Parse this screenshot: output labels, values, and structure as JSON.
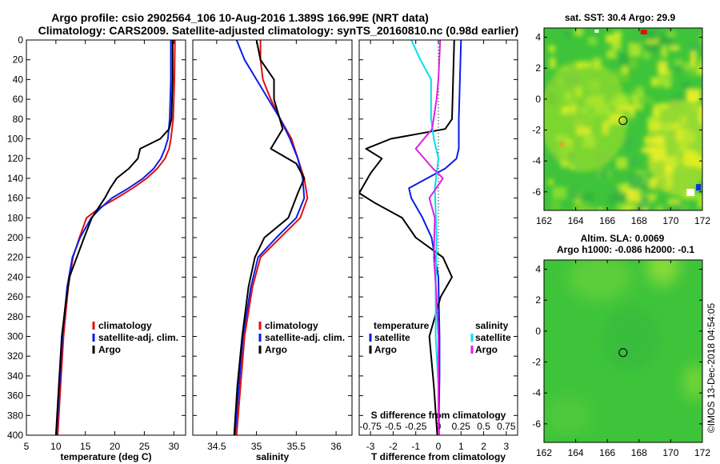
{
  "header": {
    "line1": "Argo profile: csio 2902564_106 10-Aug-2016 1.389S 166.99E (NRT data)",
    "line2": "Climatology: CARS2009. Satellite-adjusted climatology: synTS_20160810.nc (0.98d earlier)"
  },
  "watermark": "©IMOS 13-Dec-2018 04:54:05",
  "colors": {
    "red": "#e01010",
    "blue": "#0a1ee6",
    "black": "#000000",
    "cyan": "#00e0f0",
    "magenta": "#e020e0"
  },
  "chart_data": [
    {
      "type": "line",
      "name": "temperature-profile",
      "xlabel": "temperature (deg C)",
      "ylabel": "depth",
      "xlim": [
        5,
        32
      ],
      "ylim": [
        0,
        400
      ],
      "xticks": [
        5,
        10,
        15,
        20,
        25,
        30
      ],
      "yticks": [
        0,
        20,
        40,
        60,
        80,
        100,
        120,
        140,
        160,
        180,
        200,
        220,
        240,
        260,
        280,
        300,
        320,
        340,
        360,
        380,
        400
      ],
      "legend": [
        {
          "label": "climatology",
          "color": "#e01010"
        },
        {
          "label": "satellite-adj. clim.",
          "color": "#0a1ee6"
        },
        {
          "label": "Argo",
          "color": "#000000"
        }
      ],
      "series": [
        {
          "name": "climatology",
          "color": "#e01010",
          "x": [
            30.2,
            30.1,
            29.9,
            29.5,
            29.2,
            28.5,
            27.2,
            25.4,
            23.0,
            20.3,
            17.4,
            15.2,
            14.0,
            12.9,
            12.1,
            11.3,
            10.8,
            10.3
          ],
          "depth": [
            0,
            40,
            80,
            100,
            110,
            120,
            130,
            140,
            150,
            160,
            170,
            180,
            200,
            220,
            250,
            300,
            350,
            400
          ]
        },
        {
          "name": "satellite-adj. clim.",
          "color": "#0a1ee6",
          "x": [
            29.5,
            29.5,
            29.3,
            29.0,
            28.5,
            27.8,
            26.6,
            24.8,
            22.3,
            19.5,
            17.6,
            16.0,
            14.1,
            12.8,
            11.9,
            11.1,
            10.6,
            10.1
          ],
          "depth": [
            0,
            40,
            80,
            100,
            110,
            120,
            130,
            140,
            150,
            160,
            170,
            180,
            200,
            220,
            250,
            300,
            350,
            400
          ]
        },
        {
          "name": "Argo",
          "color": "#000000",
          "x": [
            29.8,
            29.8,
            29.6,
            29.2,
            27.7,
            24.3,
            23.9,
            22.4,
            20.3,
            19.2,
            18.3,
            16.1,
            14.8,
            12.3,
            11.6,
            11.0,
            10.5,
            10.0
          ],
          "depth": [
            0,
            40,
            80,
            90,
            100,
            110,
            120,
            130,
            140,
            150,
            160,
            180,
            200,
            240,
            270,
            300,
            350,
            400
          ]
        }
      ]
    },
    {
      "type": "line",
      "name": "salinity-profile",
      "xlabel": "salinity",
      "xlim": [
        34.2,
        36.2
      ],
      "ylim": [
        0,
        400
      ],
      "xticks": [
        34.5,
        35,
        35.5,
        36
      ],
      "legend": [
        {
          "label": "climatology",
          "color": "#e01010"
        },
        {
          "label": "satellite-adj. clim.",
          "color": "#0a1ee6"
        },
        {
          "label": "Argo",
          "color": "#000000"
        }
      ],
      "series": [
        {
          "name": "climatology",
          "color": "#e01010",
          "x": [
            35.05,
            35.05,
            35.08,
            35.18,
            35.3,
            35.44,
            35.52,
            35.6,
            35.64,
            35.55,
            35.3,
            35.05,
            34.95,
            34.85,
            34.8,
            34.75
          ],
          "depth": [
            0,
            20,
            40,
            60,
            80,
            100,
            120,
            140,
            160,
            180,
            200,
            220,
            250,
            300,
            350,
            400
          ]
        },
        {
          "name": "satellite-adj. clim.",
          "color": "#0a1ee6",
          "x": [
            34.75,
            34.85,
            35.0,
            35.15,
            35.3,
            35.42,
            35.52,
            35.58,
            35.6,
            35.5,
            35.25,
            35.02,
            34.93,
            34.83,
            34.78,
            34.73
          ],
          "depth": [
            0,
            20,
            40,
            60,
            80,
            100,
            120,
            140,
            160,
            180,
            200,
            220,
            250,
            300,
            350,
            400
          ]
        },
        {
          "name": "Argo",
          "color": "#000000",
          "x": [
            35.0,
            35.05,
            35.22,
            35.22,
            35.33,
            35.18,
            35.5,
            35.6,
            35.52,
            35.4,
            35.1,
            34.98,
            34.9,
            34.82,
            34.76,
            34.72
          ],
          "depth": [
            0,
            20,
            40,
            60,
            90,
            110,
            125,
            140,
            155,
            180,
            200,
            220,
            250,
            300,
            350,
            400
          ]
        }
      ]
    },
    {
      "type": "line",
      "name": "difference-profile",
      "xlabel": "T difference from climatology",
      "xlabel_top": "S difference from climatology",
      "xlim": [
        -3.5,
        3.5
      ],
      "ylim": [
        0,
        400
      ],
      "xticks": [
        -3,
        -2,
        -1,
        0,
        1,
        2,
        3
      ],
      "xticks_s": [
        -0.75,
        -0.5,
        -0.25,
        0,
        0.25,
        0.5,
        0.75
      ],
      "xticklabels_s": [
        "-0.75",
        "-0.5",
        "-0.25",
        "0",
        "0.25",
        "0.5",
        "0.75"
      ],
      "legend_left_title": "temperature",
      "legend_right_title": "salinity",
      "legend": [
        {
          "label": "satellite",
          "color": "#0a1ee6",
          "side": "left"
        },
        {
          "label": "Argo",
          "color": "#000000",
          "side": "left"
        },
        {
          "label": "satellite",
          "color": "#00e0f0",
          "side": "right"
        },
        {
          "label": "Argo",
          "color": "#e020e0",
          "side": "right"
        }
      ],
      "series": [
        {
          "name": "T satellite",
          "color": "#0a1ee6",
          "x": [
            1.0,
            0.95,
            0.9,
            0.9,
            0.9,
            0.8,
            0.3,
            -0.5,
            -1.3,
            -1.2,
            -0.7,
            -0.3,
            0.0,
            0.05,
            0.05,
            0.02,
            0.02
          ],
          "depth": [
            0,
            40,
            80,
            100,
            110,
            120,
            130,
            140,
            150,
            160,
            180,
            200,
            240,
            300,
            340,
            380,
            400
          ]
        },
        {
          "name": "T Argo",
          "color": "#000000",
          "x": [
            0.7,
            0.65,
            0.6,
            0.3,
            -2.1,
            -3.2,
            -2.5,
            -3.0,
            -3.5,
            -2.8,
            -1.6,
            -1.0,
            0.2,
            0.6,
            0.1,
            -0.4,
            -0.2,
            -0.05
          ],
          "depth": [
            0,
            40,
            80,
            90,
            100,
            110,
            120,
            135,
            155,
            165,
            180,
            200,
            220,
            240,
            260,
            300,
            350,
            400
          ]
        },
        {
          "name": "S satellite",
          "color": "#00e0f0",
          "x": [
            -0.3,
            -0.2,
            -0.08,
            -0.08,
            -0.05,
            0.0,
            -0.04,
            -0.02,
            -0.03,
            -0.03,
            0.0,
            0.0
          ],
          "depth": [
            0,
            20,
            40,
            80,
            100,
            120,
            150,
            200,
            250,
            300,
            350,
            400
          ]
        },
        {
          "name": "S Argo",
          "color": "#e020e0",
          "x": [
            0.02,
            0.0,
            -0.02,
            -0.07,
            -0.25,
            -0.06,
            0.05,
            -0.1,
            -0.04,
            -0.05,
            -0.02,
            0.0,
            0.0
          ],
          "depth": [
            0,
            40,
            60,
            90,
            110,
            130,
            140,
            160,
            180,
            220,
            260,
            300,
            400
          ]
        }
      ]
    },
    {
      "type": "heatmap",
      "name": "sst-map",
      "title": "sat. SST: 30.4 Argo: 29.9",
      "xlim": [
        162,
        172
      ],
      "ylim": [
        -7.2,
        4.6
      ],
      "xticks": [
        162,
        164,
        166,
        168,
        170,
        172
      ],
      "yticks": [
        4,
        2,
        0,
        -2,
        -4,
        -6
      ],
      "marker": {
        "lon": 166.99,
        "lat": -1.389
      }
    },
    {
      "type": "heatmap",
      "name": "sla-map",
      "title": "Altim. SLA: 0.0069",
      "subtitle": "Argo h1000: -0.086 h2000: -0.1",
      "xlim": [
        162,
        172
      ],
      "ylim": [
        -7.2,
        4.6
      ],
      "xticks": [
        162,
        164,
        166,
        168,
        170,
        172
      ],
      "yticks": [
        4,
        2,
        0,
        -2,
        -4,
        -6
      ],
      "marker": {
        "lon": 166.99,
        "lat": -1.389
      }
    }
  ]
}
